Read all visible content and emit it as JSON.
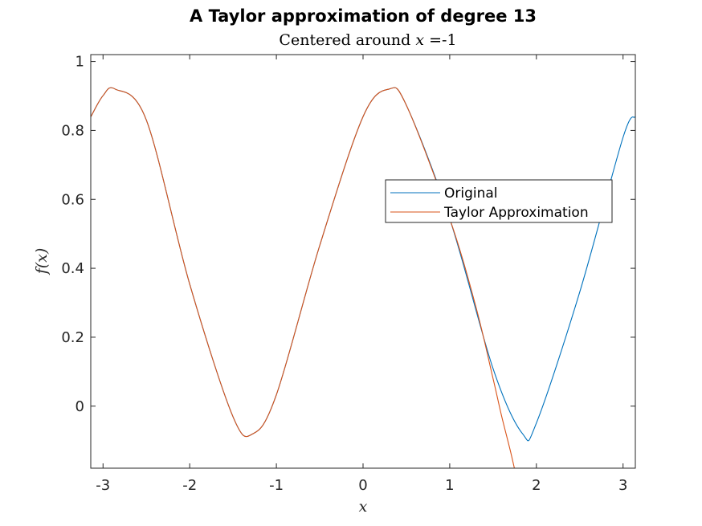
{
  "chart_data": {
    "type": "line",
    "title": "A Taylor approximation of degree 13",
    "subtitle_parts": [
      "Centered around ",
      "x",
      " =-1"
    ],
    "xlabel": "x",
    "ylabel": "f(x)",
    "xlim": [
      -3.14159,
      3.14159
    ],
    "ylim": [
      -0.18,
      1.02
    ],
    "xticks": [
      -3,
      -2,
      -1,
      0,
      1,
      2,
      3
    ],
    "xtick_labels": [
      "-3",
      "-2",
      "-1",
      "0",
      "1",
      "2",
      "3"
    ],
    "yticks": [
      0,
      0.2,
      0.4,
      0.6,
      0.8,
      1
    ],
    "ytick_labels": [
      "0",
      "0.2",
      "0.4",
      "0.6",
      "0.8",
      "1"
    ],
    "grid": false,
    "legend_position": "center-right",
    "series": [
      {
        "name": "Original",
        "color": "#0072bd",
        "x": [
          -3.14,
          -3.0,
          -2.86,
          -2.5,
          -2.0,
          -1.5,
          -1.27,
          -1.0,
          -0.5,
          0.0,
          0.3,
          0.5,
          1.0,
          1.5,
          1.84,
          2.0,
          2.5,
          3.0,
          3.14
        ],
        "y": [
          0.84,
          0.901,
          0.92,
          0.83,
          0.354,
          -0.031,
          -0.08,
          0.033,
          0.466,
          0.84,
          0.92,
          0.873,
          0.544,
          0.109,
          -0.08,
          -0.049,
          0.331,
          0.78,
          0.84
        ]
      },
      {
        "name": "Taylor Approximation",
        "color": "#d95319",
        "x": [
          -3.14,
          -3.0,
          -2.86,
          -2.5,
          -2.0,
          -1.5,
          -1.27,
          -1.0,
          -0.5,
          0.0,
          0.3,
          0.5,
          1.0,
          1.3,
          1.5,
          1.6,
          1.7,
          1.8
        ],
        "y": [
          0.84,
          0.901,
          0.92,
          0.83,
          0.354,
          -0.031,
          -0.08,
          0.033,
          0.466,
          0.84,
          0.92,
          0.873,
          0.544,
          0.29,
          0.08,
          -0.03,
          -0.13,
          -0.24
        ]
      }
    ]
  }
}
